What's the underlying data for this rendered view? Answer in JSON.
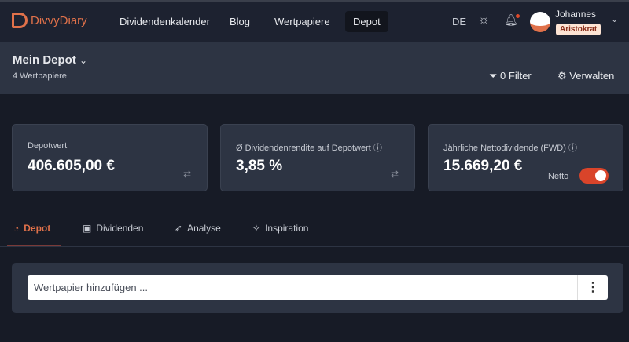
{
  "brand": "DivvyDiary",
  "nav": [
    "Dividendenkalender",
    "Blog",
    "Wertpapiere",
    "Depot"
  ],
  "lang": "DE",
  "user": {
    "name": "Johannes",
    "badge": "Aristokrat"
  },
  "header": {
    "title": "Mein Depot",
    "subtitle": "4 Wertpapiere",
    "filter": "0 Filter",
    "manage": "Verwalten"
  },
  "cards": [
    {
      "label": "Depotwert",
      "value": "406.605,00 €"
    },
    {
      "label": "Ø Dividendenrendite auf Depotwert",
      "value": "3,85 %"
    },
    {
      "label": "Jährliche Nettodividende (FWD)",
      "value": "15.669,20 €",
      "toggle": "Netto",
      "toggle_on": true
    }
  ],
  "tabs": [
    "Depot",
    "Dividenden",
    "Analyse",
    "Inspiration"
  ],
  "search": {
    "placeholder": "Wertpapier hinzufügen ..."
  },
  "accent": "#e0714a"
}
